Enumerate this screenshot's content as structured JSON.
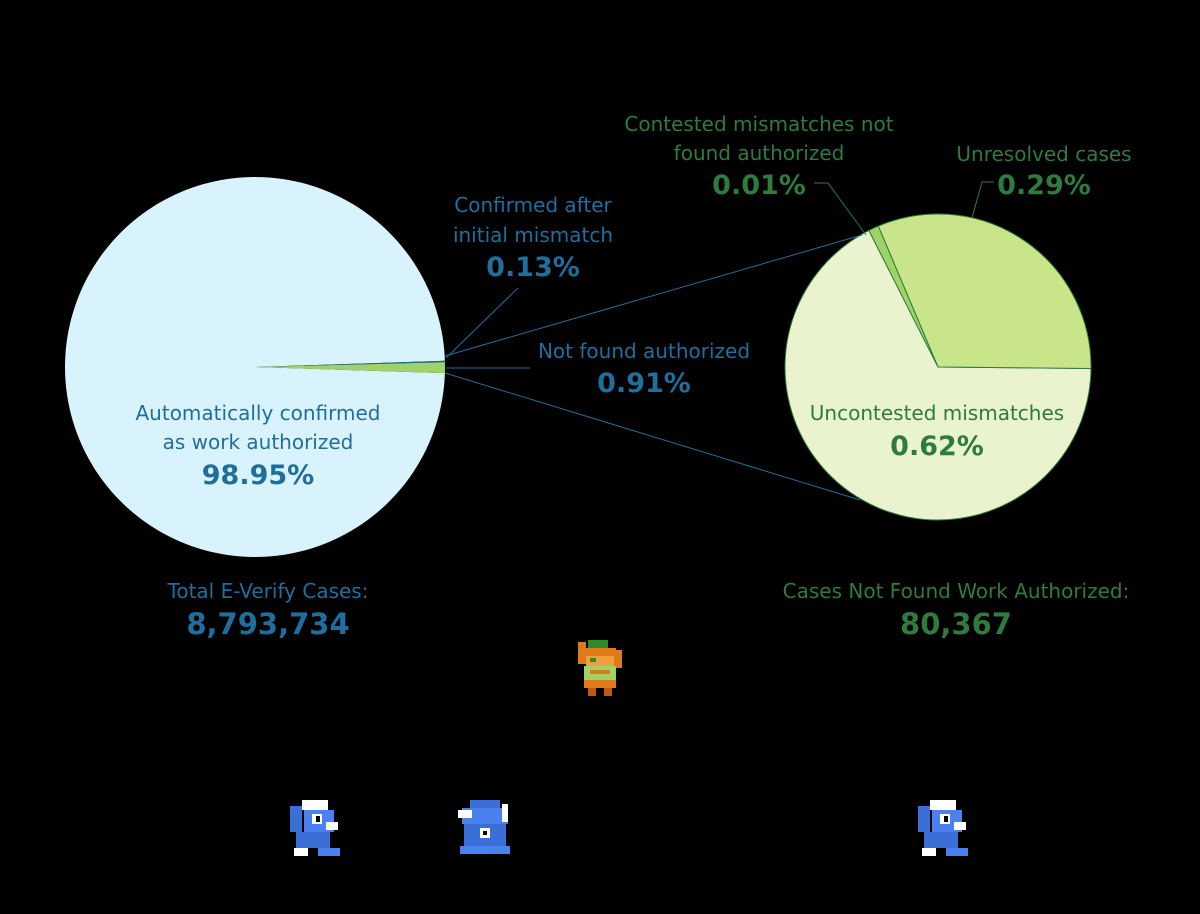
{
  "chart_data": [
    {
      "type": "pie",
      "name": "total-cases",
      "slices": [
        {
          "label_lines": [
            "Automatically confirmed",
            "as work authorized"
          ],
          "value": 98.95,
          "value_text": "98.95%",
          "color": "#d9f3fd"
        },
        {
          "label_lines": [
            "Confirmed after",
            "initial mismatch"
          ],
          "value": 0.13,
          "value_text": "0.13%",
          "color": "#1f6e9c"
        },
        {
          "label_lines": [
            "Not found authorized"
          ],
          "value": 0.91,
          "value_text": "0.91%",
          "color": "#9fd36a"
        }
      ],
      "total_label": "Total E-Verify Cases:",
      "total_value": "8,793,734"
    },
    {
      "type": "pie",
      "name": "not-authorized-breakdown",
      "slices": [
        {
          "label_lines": [
            "Uncontested mismatches"
          ],
          "value": 0.62,
          "value_text": "0.62%",
          "color": "#e9f4cf"
        },
        {
          "label_lines": [
            "Contested mismatches not",
            "found authorized"
          ],
          "value": 0.01,
          "value_text": "0.01%",
          "color": "#9fd36a"
        },
        {
          "label_lines": [
            "Unresolved cases"
          ],
          "value": 0.29,
          "value_text": "0.29%",
          "color": "#c8e58a"
        }
      ],
      "total_label": "Cases Not Found Work Authorized:",
      "total_value": "80,367"
    }
  ],
  "colors": {
    "blue_text": "#1f6e9c",
    "green_text": "#2f7a3e",
    "leader_blue": "#1f6e9c",
    "leader_green": "#2f7a3e",
    "pie_stroke": "#2f7a3e"
  },
  "sprites": [
    "hero-sprite",
    "blue-creature-sprite",
    "blue-ghost-sprite",
    "blue-creature-sprite"
  ]
}
